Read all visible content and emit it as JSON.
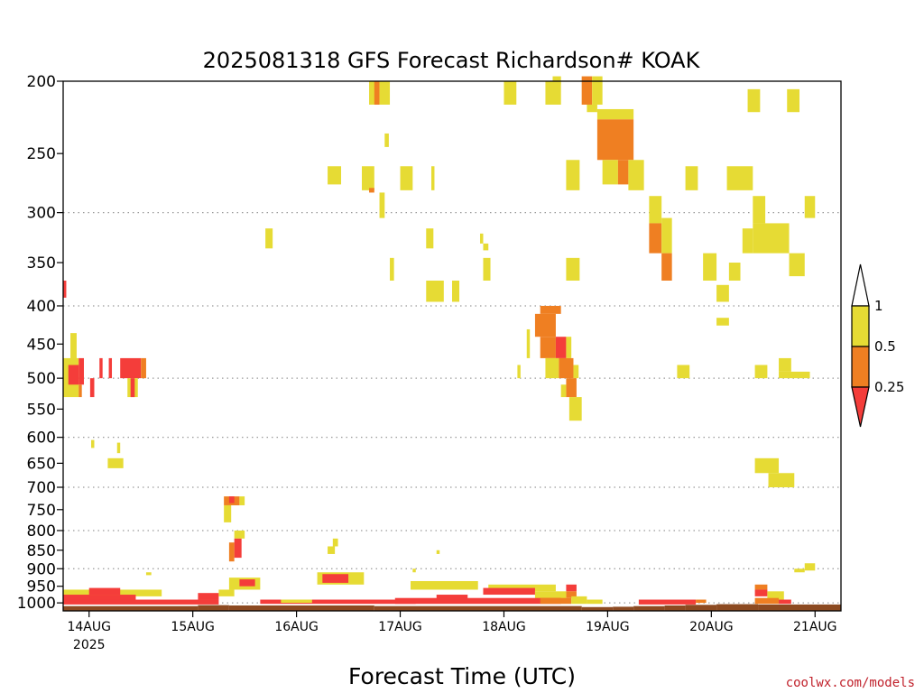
{
  "chart_data": {
    "type": "heatmap",
    "title": "2025081318 GFS Forecast Richardson# KOAK",
    "xlabel": "Forecast Time (UTC)",
    "credit": "coolwx.com/models",
    "x_unit": "days since 2025-08-13 18Z",
    "x_range": [
      0,
      7.5
    ],
    "y_scale": "log",
    "y_range_hpa": [
      200,
      1025
    ],
    "y_ticks": [
      200,
      250,
      300,
      350,
      400,
      450,
      500,
      550,
      600,
      650,
      700,
      750,
      800,
      850,
      900,
      950,
      1000
    ],
    "gridlines_hpa": [
      300,
      400,
      500,
      600,
      700,
      800,
      900,
      1000
    ],
    "x_ticks": [
      {
        "x": 0.25,
        "label": "14AUG",
        "sub": "2025"
      },
      {
        "x": 1.25,
        "label": "15AUG"
      },
      {
        "x": 2.25,
        "label": "16AUG"
      },
      {
        "x": 3.25,
        "label": "17AUG"
      },
      {
        "x": 4.25,
        "label": "18AUG"
      },
      {
        "x": 5.25,
        "label": "19AUG"
      },
      {
        "x": 6.25,
        "label": "20AUG"
      },
      {
        "x": 7.25,
        "label": "21AUG"
      }
    ],
    "legend": {
      "categories": [
        {
          "key": "yellow",
          "range": "0.5 - 1",
          "color": "#e6db34"
        },
        {
          "key": "orange",
          "range": "0.25 - 0.5",
          "color": "#ef7f22"
        },
        {
          "key": "red",
          "range": "< 0.25",
          "color": "#f43d3a"
        }
      ],
      "labels": [
        "1",
        "0.5",
        "0.25"
      ],
      "overflow_color": "#ffffff"
    },
    "terrain_color": "#8c4a21",
    "cells": [
      {
        "x0": 2.95,
        "x1": 3.05,
        "p0": 200,
        "p1": 215,
        "c": "yellow"
      },
      {
        "x0": 3.0,
        "x1": 3.05,
        "p0": 200,
        "p1": 215,
        "c": "orange"
      },
      {
        "x0": 3.05,
        "x1": 3.15,
        "p0": 200,
        "p1": 215,
        "c": "yellow"
      },
      {
        "x0": 3.1,
        "x1": 3.14,
        "p0": 235,
        "p1": 245,
        "c": "yellow"
      },
      {
        "x0": 4.25,
        "x1": 4.37,
        "p0": 200,
        "p1": 215,
        "c": "yellow"
      },
      {
        "x0": 4.65,
        "x1": 4.8,
        "p0": 200,
        "p1": 215,
        "c": "yellow"
      },
      {
        "x0": 4.72,
        "x1": 4.8,
        "p0": 197,
        "p1": 202,
        "c": "yellow"
      },
      {
        "x0": 5.0,
        "x1": 5.1,
        "p0": 197,
        "p1": 215,
        "c": "orange"
      },
      {
        "x0": 5.1,
        "x1": 5.2,
        "p0": 197,
        "p1": 215,
        "c": "yellow"
      },
      {
        "x0": 5.05,
        "x1": 5.15,
        "p0": 215,
        "p1": 220,
        "c": "yellow"
      },
      {
        "x0": 5.15,
        "x1": 5.5,
        "p0": 218,
        "p1": 225,
        "c": "yellow"
      },
      {
        "x0": 5.15,
        "x1": 5.5,
        "p0": 225,
        "p1": 255,
        "c": "orange"
      },
      {
        "x0": 5.2,
        "x1": 5.35,
        "p0": 255,
        "p1": 275,
        "c": "yellow"
      },
      {
        "x0": 5.35,
        "x1": 5.45,
        "p0": 255,
        "p1": 275,
        "c": "orange"
      },
      {
        "x0": 5.45,
        "x1": 5.6,
        "p0": 255,
        "p1": 280,
        "c": "yellow"
      },
      {
        "x0": 6.6,
        "x1": 6.72,
        "p0": 205,
        "p1": 220,
        "c": "yellow"
      },
      {
        "x0": 6.98,
        "x1": 7.1,
        "p0": 205,
        "p1": 220,
        "c": "yellow"
      },
      {
        "x0": 4.85,
        "x1": 4.98,
        "p0": 255,
        "p1": 280,
        "c": "yellow"
      },
      {
        "x0": 6.0,
        "x1": 6.12,
        "p0": 260,
        "p1": 280,
        "c": "yellow"
      },
      {
        "x0": 6.4,
        "x1": 6.65,
        "p0": 260,
        "p1": 280,
        "c": "yellow"
      },
      {
        "x0": 2.55,
        "x1": 2.68,
        "p0": 260,
        "p1": 275,
        "c": "yellow"
      },
      {
        "x0": 2.88,
        "x1": 3.0,
        "p0": 260,
        "p1": 280,
        "c": "yellow"
      },
      {
        "x0": 2.95,
        "x1": 3.0,
        "p0": 278,
        "p1": 282,
        "c": "orange"
      },
      {
        "x0": 3.25,
        "x1": 3.37,
        "p0": 260,
        "p1": 280,
        "c": "yellow"
      },
      {
        "x0": 3.55,
        "x1": 3.58,
        "p0": 260,
        "p1": 280,
        "c": "yellow"
      },
      {
        "x0": 3.05,
        "x1": 3.1,
        "p0": 282,
        "p1": 305,
        "c": "yellow"
      },
      {
        "x0": 5.65,
        "x1": 5.77,
        "p0": 285,
        "p1": 310,
        "c": "yellow"
      },
      {
        "x0": 5.65,
        "x1": 5.77,
        "p0": 310,
        "p1": 340,
        "c": "orange"
      },
      {
        "x0": 5.77,
        "x1": 5.87,
        "p0": 305,
        "p1": 340,
        "c": "yellow"
      },
      {
        "x0": 5.77,
        "x1": 5.87,
        "p0": 340,
        "p1": 370,
        "c": "orange"
      },
      {
        "x0": 6.65,
        "x1": 6.77,
        "p0": 285,
        "p1": 310,
        "c": "yellow"
      },
      {
        "x0": 6.55,
        "x1": 6.65,
        "p0": 315,
        "p1": 340,
        "c": "yellow"
      },
      {
        "x0": 6.65,
        "x1": 7.0,
        "p0": 310,
        "p1": 340,
        "c": "yellow"
      },
      {
        "x0": 7.15,
        "x1": 7.25,
        "p0": 285,
        "p1": 305,
        "c": "yellow"
      },
      {
        "x0": 7.0,
        "x1": 7.15,
        "p0": 340,
        "p1": 365,
        "c": "yellow"
      },
      {
        "x0": 1.95,
        "x1": 2.02,
        "p0": 315,
        "p1": 335,
        "c": "yellow"
      },
      {
        "x0": 3.5,
        "x1": 3.57,
        "p0": 315,
        "p1": 335,
        "c": "yellow"
      },
      {
        "x0": 4.02,
        "x1": 4.05,
        "p0": 320,
        "p1": 330,
        "c": "yellow"
      },
      {
        "x0": 4.05,
        "x1": 4.1,
        "p0": 330,
        "p1": 337,
        "c": "yellow"
      },
      {
        "x0": 3.15,
        "x1": 3.19,
        "p0": 345,
        "p1": 370,
        "c": "yellow"
      },
      {
        "x0": 4.05,
        "x1": 4.12,
        "p0": 345,
        "p1": 370,
        "c": "yellow"
      },
      {
        "x0": 4.85,
        "x1": 4.98,
        "p0": 345,
        "p1": 370,
        "c": "yellow"
      },
      {
        "x0": 6.17,
        "x1": 6.3,
        "p0": 340,
        "p1": 370,
        "c": "yellow"
      },
      {
        "x0": 6.42,
        "x1": 6.53,
        "p0": 350,
        "p1": 370,
        "c": "yellow"
      },
      {
        "x0": 3.5,
        "x1": 3.67,
        "p0": 370,
        "p1": 395,
        "c": "yellow"
      },
      {
        "x0": 3.75,
        "x1": 3.82,
        "p0": 370,
        "p1": 395,
        "c": "yellow"
      },
      {
        "x0": 6.3,
        "x1": 6.42,
        "p0": 375,
        "p1": 395,
        "c": "yellow"
      },
      {
        "x0": 6.3,
        "x1": 6.42,
        "p0": 415,
        "p1": 425,
        "c": "yellow"
      },
      {
        "x0": 0.0,
        "x1": 0.03,
        "p0": 370,
        "p1": 390,
        "c": "red"
      },
      {
        "x0": 4.6,
        "x1": 4.8,
        "p0": 400,
        "p1": 410,
        "c": "orange"
      },
      {
        "x0": 4.55,
        "x1": 4.75,
        "p0": 410,
        "p1": 440,
        "c": "orange"
      },
      {
        "x0": 4.6,
        "x1": 4.75,
        "p0": 440,
        "p1": 470,
        "c": "orange"
      },
      {
        "x0": 4.75,
        "x1": 4.85,
        "p0": 440,
        "p1": 470,
        "c": "red"
      },
      {
        "x0": 4.85,
        "x1": 4.9,
        "p0": 440,
        "p1": 470,
        "c": "yellow"
      },
      {
        "x0": 4.65,
        "x1": 4.78,
        "p0": 470,
        "p1": 500,
        "c": "yellow"
      },
      {
        "x0": 4.78,
        "x1": 4.92,
        "p0": 470,
        "p1": 500,
        "c": "orange"
      },
      {
        "x0": 4.92,
        "x1": 4.97,
        "p0": 480,
        "p1": 500,
        "c": "yellow"
      },
      {
        "x0": 4.85,
        "x1": 4.95,
        "p0": 500,
        "p1": 530,
        "c": "orange"
      },
      {
        "x0": 4.8,
        "x1": 4.85,
        "p0": 510,
        "p1": 530,
        "c": "yellow"
      },
      {
        "x0": 4.88,
        "x1": 5.0,
        "p0": 530,
        "p1": 570,
        "c": "yellow"
      },
      {
        "x0": 4.47,
        "x1": 4.5,
        "p0": 430,
        "p1": 470,
        "c": "yellow"
      },
      {
        "x0": 4.38,
        "x1": 4.41,
        "p0": 480,
        "p1": 500,
        "c": "yellow"
      },
      {
        "x0": 6.9,
        "x1": 7.02,
        "p0": 470,
        "p1": 490,
        "c": "yellow"
      },
      {
        "x0": 6.9,
        "x1": 7.2,
        "p0": 490,
        "p1": 500,
        "c": "yellow"
      },
      {
        "x0": 5.92,
        "x1": 6.04,
        "p0": 480,
        "p1": 500,
        "c": "yellow"
      },
      {
        "x0": 6.67,
        "x1": 6.79,
        "p0": 480,
        "p1": 500,
        "c": "yellow"
      },
      {
        "x0": 0.0,
        "x1": 0.15,
        "p0": 470,
        "p1": 530,
        "c": "yellow"
      },
      {
        "x0": 0.05,
        "x1": 0.15,
        "p0": 480,
        "p1": 510,
        "c": "red"
      },
      {
        "x0": 0.07,
        "x1": 0.13,
        "p0": 435,
        "p1": 480,
        "c": "yellow"
      },
      {
        "x0": 0.15,
        "x1": 0.2,
        "p0": 470,
        "p1": 510,
        "c": "red"
      },
      {
        "x0": 0.15,
        "x1": 0.18,
        "p0": 510,
        "p1": 530,
        "c": "orange"
      },
      {
        "x0": 0.26,
        "x1": 0.3,
        "p0": 500,
        "p1": 530,
        "c": "red"
      },
      {
        "x0": 0.35,
        "x1": 0.38,
        "p0": 470,
        "p1": 500,
        "c": "red"
      },
      {
        "x0": 0.44,
        "x1": 0.47,
        "p0": 470,
        "p1": 500,
        "c": "red"
      },
      {
        "x0": 0.55,
        "x1": 0.75,
        "p0": 470,
        "p1": 500,
        "c": "red"
      },
      {
        "x0": 0.75,
        "x1": 0.8,
        "p0": 470,
        "p1": 500,
        "c": "orange"
      },
      {
        "x0": 0.62,
        "x1": 0.72,
        "p0": 500,
        "p1": 530,
        "c": "yellow"
      },
      {
        "x0": 0.65,
        "x1": 0.69,
        "p0": 500,
        "p1": 530,
        "c": "red"
      },
      {
        "x0": 0.27,
        "x1": 0.3,
        "p0": 605,
        "p1": 620,
        "c": "yellow"
      },
      {
        "x0": 0.43,
        "x1": 0.58,
        "p0": 640,
        "p1": 660,
        "c": "yellow"
      },
      {
        "x0": 0.52,
        "x1": 0.55,
        "p0": 610,
        "p1": 630,
        "c": "yellow"
      },
      {
        "x0": 6.67,
        "x1": 6.9,
        "p0": 640,
        "p1": 670,
        "c": "yellow"
      },
      {
        "x0": 6.8,
        "x1": 7.05,
        "p0": 670,
        "p1": 700,
        "c": "yellow"
      },
      {
        "x0": 1.55,
        "x1": 1.7,
        "p0": 720,
        "p1": 740,
        "c": "orange"
      },
      {
        "x0": 1.6,
        "x1": 1.65,
        "p0": 720,
        "p1": 735,
        "c": "red"
      },
      {
        "x0": 1.7,
        "x1": 1.75,
        "p0": 720,
        "p1": 740,
        "c": "yellow"
      },
      {
        "x0": 1.55,
        "x1": 1.62,
        "p0": 740,
        "p1": 780,
        "c": "yellow"
      },
      {
        "x0": 1.65,
        "x1": 1.75,
        "p0": 800,
        "p1": 820,
        "c": "yellow"
      },
      {
        "x0": 1.65,
        "x1": 1.72,
        "p0": 820,
        "p1": 870,
        "c": "red"
      },
      {
        "x0": 1.6,
        "x1": 1.65,
        "p0": 830,
        "p1": 880,
        "c": "orange"
      },
      {
        "x0": 2.6,
        "x1": 2.65,
        "p0": 820,
        "p1": 840,
        "c": "yellow"
      },
      {
        "x0": 2.55,
        "x1": 2.62,
        "p0": 840,
        "p1": 860,
        "c": "yellow"
      },
      {
        "x0": 3.6,
        "x1": 3.63,
        "p0": 850,
        "p1": 860,
        "c": "yellow"
      },
      {
        "x0": 7.15,
        "x1": 7.25,
        "p0": 885,
        "p1": 905,
        "c": "yellow"
      },
      {
        "x0": 7.05,
        "x1": 7.15,
        "p0": 900,
        "p1": 910,
        "c": "yellow"
      },
      {
        "x0": 0.8,
        "x1": 0.85,
        "p0": 910,
        "p1": 918,
        "c": "yellow"
      },
      {
        "x0": 3.37,
        "x1": 3.4,
        "p0": 900,
        "p1": 910,
        "c": "yellow"
      },
      {
        "x0": 1.6,
        "x1": 1.9,
        "p0": 925,
        "p1": 960,
        "c": "yellow"
      },
      {
        "x0": 1.7,
        "x1": 1.85,
        "p0": 930,
        "p1": 950,
        "c": "red"
      },
      {
        "x0": 2.45,
        "x1": 2.9,
        "p0": 910,
        "p1": 945,
        "c": "yellow"
      },
      {
        "x0": 2.5,
        "x1": 2.75,
        "p0": 915,
        "p1": 940,
        "c": "red"
      },
      {
        "x0": 3.35,
        "x1": 4.0,
        "p0": 935,
        "p1": 960,
        "c": "yellow"
      },
      {
        "x0": 4.1,
        "x1": 4.75,
        "p0": 945,
        "p1": 965,
        "c": "yellow"
      },
      {
        "x0": 4.05,
        "x1": 4.55,
        "p0": 955,
        "p1": 975,
        "c": "red"
      },
      {
        "x0": 4.85,
        "x1": 4.95,
        "p0": 945,
        "p1": 965,
        "c": "red"
      },
      {
        "x0": 4.85,
        "x1": 4.95,
        "p0": 965,
        "p1": 985,
        "c": "orange"
      },
      {
        "x0": 4.55,
        "x1": 4.85,
        "p0": 965,
        "p1": 990,
        "c": "yellow"
      },
      {
        "x0": 6.67,
        "x1": 6.79,
        "p0": 945,
        "p1": 960,
        "c": "orange"
      },
      {
        "x0": 6.67,
        "x1": 6.79,
        "p0": 960,
        "p1": 980,
        "c": "red"
      },
      {
        "x0": 6.79,
        "x1": 6.95,
        "p0": 965,
        "p1": 990,
        "c": "yellow"
      },
      {
        "x0": 0.0,
        "x1": 0.95,
        "p0": 960,
        "p1": 980,
        "c": "yellow"
      },
      {
        "x0": 0.0,
        "x1": 0.7,
        "p0": 975,
        "p1": 1000,
        "c": "red"
      },
      {
        "x0": 0.25,
        "x1": 0.55,
        "p0": 955,
        "p1": 975,
        "c": "red"
      },
      {
        "x0": 0.0,
        "x1": 1.5,
        "p0": 990,
        "p1": 1005,
        "c": "red"
      },
      {
        "x0": 1.3,
        "x1": 1.5,
        "p0": 970,
        "p1": 990,
        "c": "red"
      },
      {
        "x0": 1.5,
        "x1": 1.65,
        "p0": 960,
        "p1": 980,
        "c": "yellow"
      },
      {
        "x0": 1.9,
        "x1": 3.4,
        "p0": 990,
        "p1": 1003,
        "c": "red"
      },
      {
        "x0": 2.1,
        "x1": 2.4,
        "p0": 990,
        "p1": 1000,
        "c": "yellow"
      },
      {
        "x0": 3.2,
        "x1": 4.8,
        "p0": 985,
        "p1": 1003,
        "c": "red"
      },
      {
        "x0": 3.6,
        "x1": 3.9,
        "p0": 975,
        "p1": 990,
        "c": "red"
      },
      {
        "x0": 4.6,
        "x1": 4.9,
        "p0": 985,
        "p1": 1003,
        "c": "orange"
      },
      {
        "x0": 4.9,
        "x1": 5.05,
        "p0": 980,
        "p1": 1003,
        "c": "yellow"
      },
      {
        "x0": 5.05,
        "x1": 5.2,
        "p0": 990,
        "p1": 1003,
        "c": "yellow"
      },
      {
        "x0": 5.55,
        "x1": 6.1,
        "p0": 990,
        "p1": 1005,
        "c": "red"
      },
      {
        "x0": 6.1,
        "x1": 6.2,
        "p0": 990,
        "p1": 1000,
        "c": "orange"
      },
      {
        "x0": 6.67,
        "x1": 6.9,
        "p0": 985,
        "p1": 1003,
        "c": "orange"
      },
      {
        "x0": 6.9,
        "x1": 7.02,
        "p0": 990,
        "p1": 1003,
        "c": "red"
      }
    ],
    "terrain": [
      {
        "x0": 0.0,
        "x1": 1.3,
        "p": 1010
      },
      {
        "x0": 1.3,
        "x1": 1.6,
        "p": 1007
      },
      {
        "x0": 1.6,
        "x1": 3.0,
        "p": 1008
      },
      {
        "x0": 3.0,
        "x1": 5.0,
        "p": 1010
      },
      {
        "x0": 5.0,
        "x1": 5.3,
        "p": 1013
      },
      {
        "x0": 5.3,
        "x1": 5.5,
        "p": 1012
      },
      {
        "x0": 5.5,
        "x1": 5.8,
        "p": 1010
      },
      {
        "x0": 5.8,
        "x1": 6.0,
        "p": 1008
      },
      {
        "x0": 6.0,
        "x1": 6.3,
        "p": 1006
      },
      {
        "x0": 6.3,
        "x1": 6.7,
        "p": 1004
      },
      {
        "x0": 6.7,
        "x1": 7.5,
        "p": 1005
      }
    ]
  }
}
